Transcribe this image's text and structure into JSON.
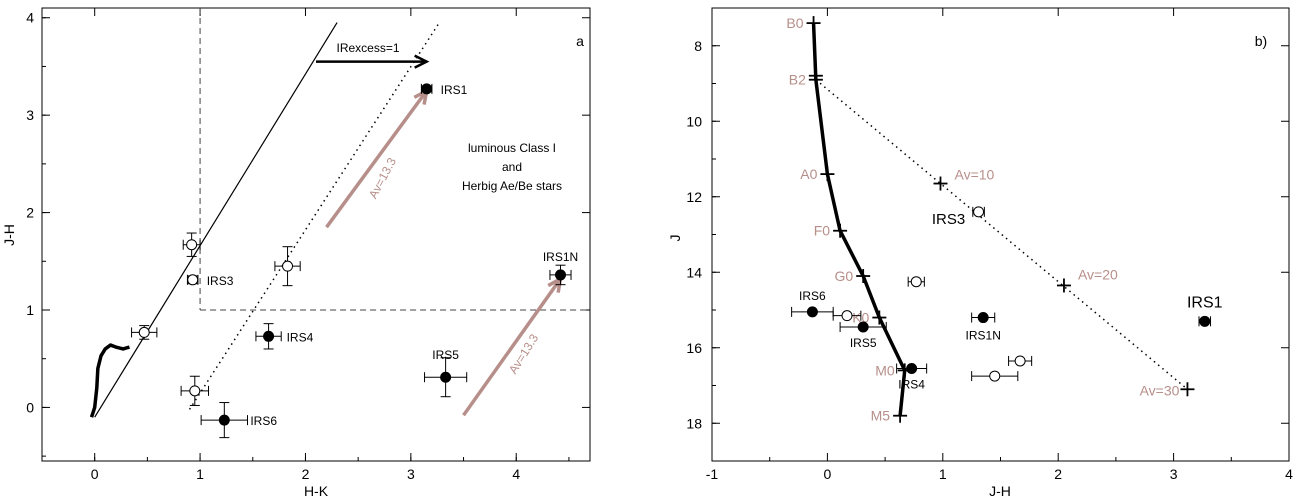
{
  "colors": {
    "reddish": "#b78f8a",
    "black": "#000000"
  },
  "chart_data": [
    {
      "type": "scatter",
      "panel_label": "a",
      "xlabel": "H-K",
      "ylabel": "J-H",
      "xlim": [
        -0.5,
        4.7
      ],
      "ylim": [
        -0.55,
        4.1
      ],
      "xticks": [
        "0",
        "1",
        "2",
        "3",
        "4"
      ],
      "yticks": [
        "0",
        "1",
        "2",
        "3",
        "4"
      ],
      "annotations": {
        "irexcess": "IRexcess=1",
        "region_line1": "luminous Class I",
        "region_line2": "and",
        "region_line3": "Herbig Ae/Be stars",
        "av1": "Av=13.3",
        "av2": "Av=13.3"
      },
      "stars": [
        {
          "name": "IRS1",
          "x": 3.15,
          "y": 3.27,
          "filled": true,
          "xerr": 0.05,
          "yerr": 0.03,
          "show_label": true
        },
        {
          "name": "IRS1N",
          "x": 4.42,
          "y": 1.36,
          "filled": true,
          "xerr": 0.1,
          "yerr": 0.1,
          "show_label": true
        },
        {
          "name": "IRS3",
          "x": 0.93,
          "y": 1.31,
          "filled": false,
          "xerr": 0.05,
          "yerr": 0.04,
          "show_label": true
        },
        {
          "name": "IRS4",
          "x": 1.65,
          "y": 0.73,
          "filled": true,
          "xerr": 0.12,
          "yerr": 0.13,
          "show_label": true
        },
        {
          "name": "IRS5",
          "x": 3.33,
          "y": 0.31,
          "filled": true,
          "xerr": 0.2,
          "yerr": 0.2,
          "show_label": true
        },
        {
          "name": "IRS6",
          "x": 1.23,
          "y": -0.13,
          "filled": true,
          "xerr": 0.22,
          "yerr": 0.18,
          "show_label": true
        },
        {
          "name": "",
          "x": 0.92,
          "y": 1.67,
          "filled": false,
          "xerr": 0.08,
          "yerr": 0.12,
          "show_label": false
        },
        {
          "name": "",
          "x": 1.83,
          "y": 1.45,
          "filled": false,
          "xerr": 0.12,
          "yerr": 0.2,
          "show_label": false
        },
        {
          "name": "",
          "x": 0.47,
          "y": 0.77,
          "filled": false,
          "xerr": 0.12,
          "yerr": 0.07,
          "show_label": false
        },
        {
          "name": "",
          "x": 0.95,
          "y": 0.17,
          "filled": false,
          "xerr": 0.13,
          "yerr": 0.15,
          "show_label": false
        }
      ],
      "main_sequence": [
        [
          -0.03,
          -0.1
        ],
        [
          0.0,
          0.0
        ],
        [
          0.02,
          0.2
        ],
        [
          0.03,
          0.4
        ],
        [
          0.06,
          0.53
        ],
        [
          0.1,
          0.6
        ],
        [
          0.15,
          0.64
        ],
        [
          0.2,
          0.62
        ],
        [
          0.27,
          0.6
        ],
        [
          0.33,
          0.62
        ]
      ],
      "ctts_line": [
        [
          0.0,
          -0.1
        ],
        [
          2.3,
          3.95
        ]
      ],
      "reddening_line": [
        [
          0.9,
          -0.02
        ],
        [
          3.27,
          3.95
        ]
      ],
      "vertical_dash_x": 1.0,
      "horizontal_dash_y": 1.0,
      "irexcess_arrow": [
        [
          2.1,
          3.55
        ],
        [
          3.15,
          3.55
        ]
      ],
      "av_arrows": [
        [
          [
            2.2,
            1.85
          ],
          [
            3.15,
            3.25
          ]
        ],
        [
          [
            3.5,
            -0.08
          ],
          [
            4.42,
            1.32
          ]
        ]
      ]
    },
    {
      "type": "scatter",
      "panel_label": "b)",
      "xlabel": "J-H",
      "ylabel": "J",
      "xlim": [
        -1,
        4
      ],
      "ylim": [
        19,
        7
      ],
      "xticks": [
        "-1",
        "0",
        "1",
        "2",
        "3",
        "4"
      ],
      "yticks": [
        "8",
        "10",
        "12",
        "14",
        "16",
        "18"
      ],
      "spectral_types": [
        {
          "name": "B0",
          "x": -0.12,
          "y": 7.4
        },
        {
          "name": "B2",
          "x": -0.1,
          "y": 8.9
        },
        {
          "name": "A0",
          "x": 0.0,
          "y": 11.4
        },
        {
          "name": "F0",
          "x": 0.11,
          "y": 12.9
        },
        {
          "name": "G0",
          "x": 0.31,
          "y": 14.1
        },
        {
          "name": "K0",
          "x": 0.45,
          "y": 15.2
        },
        {
          "name": "M0",
          "x": 0.67,
          "y": 16.6
        },
        {
          "name": "M5",
          "x": 0.63,
          "y": 17.8
        }
      ],
      "av_markers": [
        {
          "name": "Av=10",
          "x": 0.98,
          "y": 11.65
        },
        {
          "name": "Av=20",
          "x": 2.05,
          "y": 14.35
        },
        {
          "name": "Av=30",
          "x": 3.12,
          "y": 17.1
        }
      ],
      "stars": [
        {
          "name": "IRS1",
          "x": 3.27,
          "y": 15.3,
          "filled": true,
          "xerr": 0.05,
          "yerr": 0.08
        },
        {
          "name": "IRS1N",
          "x": 1.35,
          "y": 15.2,
          "filled": true,
          "xerr": 0.1,
          "yerr": 0.08
        },
        {
          "name": "IRS3",
          "x": 1.31,
          "y": 12.4,
          "filled": false,
          "xerr": 0.05,
          "yerr": 0.1
        },
        {
          "name": "IRS4",
          "x": 0.73,
          "y": 16.55,
          "filled": true,
          "xerr": 0.13,
          "yerr": 0.08
        },
        {
          "name": "IRS5",
          "x": 0.31,
          "y": 15.45,
          "filled": true,
          "xerr": 0.2,
          "yerr": 0.08
        },
        {
          "name": "IRS6",
          "x": -0.13,
          "y": 15.05,
          "filled": true,
          "xerr": 0.18,
          "yerr": 0.08
        },
        {
          "name": "",
          "x": 0.77,
          "y": 14.25,
          "filled": false,
          "xerr": 0.07,
          "yerr": 0.08
        },
        {
          "name": "",
          "x": 0.17,
          "y": 15.15,
          "filled": false,
          "xerr": 0.12,
          "yerr": 0.08
        },
        {
          "name": "",
          "x": 1.67,
          "y": 16.35,
          "filled": false,
          "xerr": 0.1,
          "yerr": 0.1
        },
        {
          "name": "",
          "x": 1.45,
          "y": 16.75,
          "filled": false,
          "xerr": 0.2,
          "yerr": 0.1
        }
      ]
    }
  ]
}
